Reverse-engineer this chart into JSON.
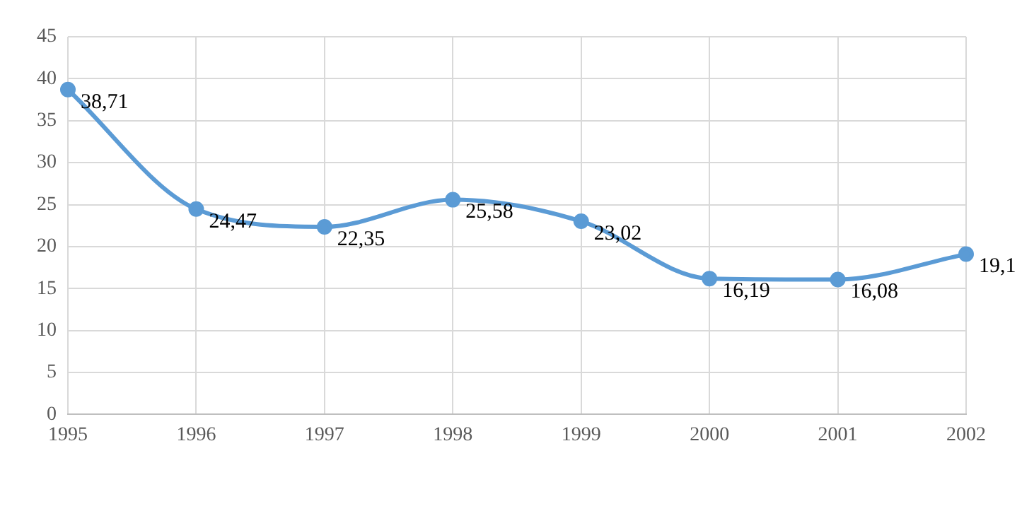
{
  "chart_data": {
    "type": "line",
    "categories": [
      "1995",
      "1996",
      "1997",
      "1998",
      "1999",
      "2000",
      "2001",
      "2002"
    ],
    "series": [
      {
        "color": "#5b9bd5",
        "values": [
          38.71,
          24.47,
          22.35,
          25.58,
          23.02,
          16.19,
          16.08,
          19.1
        ],
        "value_labels": [
          "38,71",
          "24,47",
          "22,35",
          "25,58",
          "23,02",
          "16,19",
          "16,08",
          "19,1"
        ]
      }
    ],
    "ylim": [
      0,
      45
    ],
    "yticks": [
      0,
      5,
      10,
      15,
      20,
      25,
      30,
      35,
      40,
      45
    ],
    "grid": true,
    "legend": false,
    "marker": "circle",
    "line_style": "solid"
  }
}
